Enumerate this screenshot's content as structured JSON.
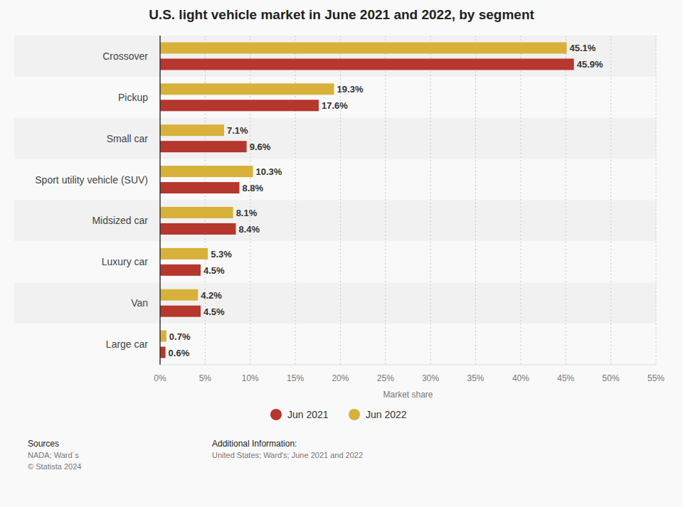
{
  "chart_data": {
    "type": "bar",
    "orientation": "horizontal",
    "title": "U.S. light vehicle market in June 2021 and 2022, by segment",
    "x_label": "Market share",
    "categories": [
      "Crossover",
      "Pickup",
      "Small car",
      "Sport utility vehicle (SUV)",
      "Midsized car",
      "Luxury car",
      "Van",
      "Large car"
    ],
    "series": [
      {
        "name": "Jun 2021",
        "color": "#b5372d",
        "values": [
          45.9,
          17.6,
          9.6,
          8.8,
          8.4,
          4.5,
          4.5,
          0.6
        ],
        "value_labels": [
          "45.9%",
          "17.6%",
          "9.6%",
          "8.8%",
          "8.4%",
          "4.5%",
          "4.5%",
          "0.6%"
        ]
      },
      {
        "name": "Jun 2022",
        "color": "#d8b13b",
        "values": [
          45.1,
          19.3,
          7.1,
          10.3,
          8.1,
          5.3,
          4.2,
          0.7
        ],
        "value_labels": [
          "45.1%",
          "19.3%",
          "7.1%",
          "10.3%",
          "8.1%",
          "5.3%",
          "4.2%",
          "0.7%"
        ]
      }
    ],
    "xlim": [
      0,
      55
    ],
    "xticks": [
      {
        "value": 0,
        "label": "0%"
      },
      {
        "value": 5,
        "label": "5%"
      },
      {
        "value": 10,
        "label": "10%"
      },
      {
        "value": 15,
        "label": "15%"
      },
      {
        "value": 20,
        "label": "20%"
      },
      {
        "value": 25,
        "label": "25%"
      },
      {
        "value": 30,
        "label": "30%"
      },
      {
        "value": 35,
        "label": "35%"
      },
      {
        "value": 40,
        "label": "40%"
      },
      {
        "value": 45,
        "label": "45%"
      },
      {
        "value": 50,
        "label": "50%"
      },
      {
        "value": 55,
        "label": "55%"
      }
    ],
    "grid": true,
    "data_labels": true,
    "legend": "bottom",
    "sources_heading": "Sources",
    "sources": "NADA; Ward´s",
    "copyright": "© Statista 2024",
    "additional_info_heading": "Additional Information:",
    "additional_info": "United States; Ward's; June 2021 and 2022"
  }
}
